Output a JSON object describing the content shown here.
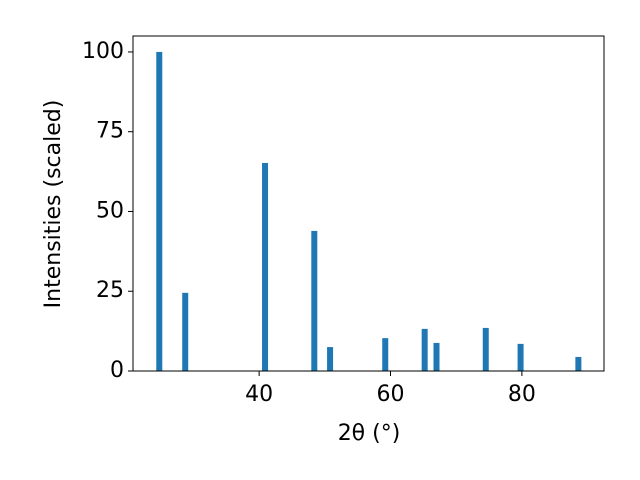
{
  "chart_data": {
    "type": "bar",
    "xlabel": "2θ (°)",
    "ylabel": "Intensities (scaled)",
    "x": [
      24.8,
      28.75,
      40.9,
      48.4,
      50.8,
      59.2,
      65.2,
      67.0,
      74.5,
      79.8,
      88.6
    ],
    "values": [
      100,
      24.5,
      65.2,
      43.9,
      7.5,
      10.3,
      13.2,
      8.8,
      13.5,
      8.5,
      4.4
    ],
    "color": "#1f77b4",
    "xlim": [
      20.8,
      92.5
    ],
    "xticks": [
      40,
      60,
      80
    ],
    "ylim": [
      0,
      105
    ],
    "yticks": [
      0,
      25,
      50,
      75,
      100
    ]
  }
}
